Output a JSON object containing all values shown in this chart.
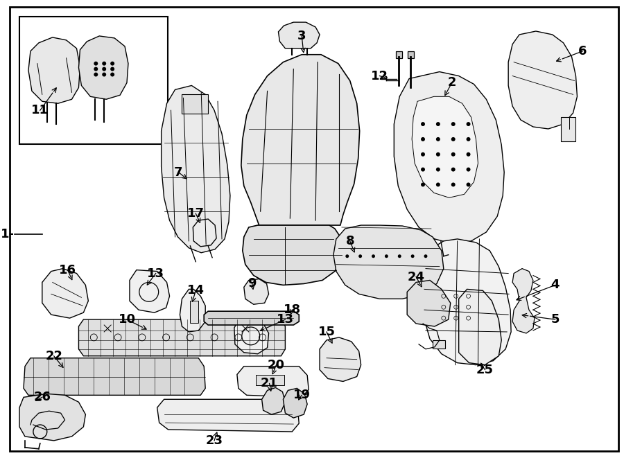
{
  "bg_color": "#ffffff",
  "line_color": "#000000",
  "text_color": "#000000",
  "fig_width": 9.0,
  "fig_height": 6.61,
  "dpi": 100
}
